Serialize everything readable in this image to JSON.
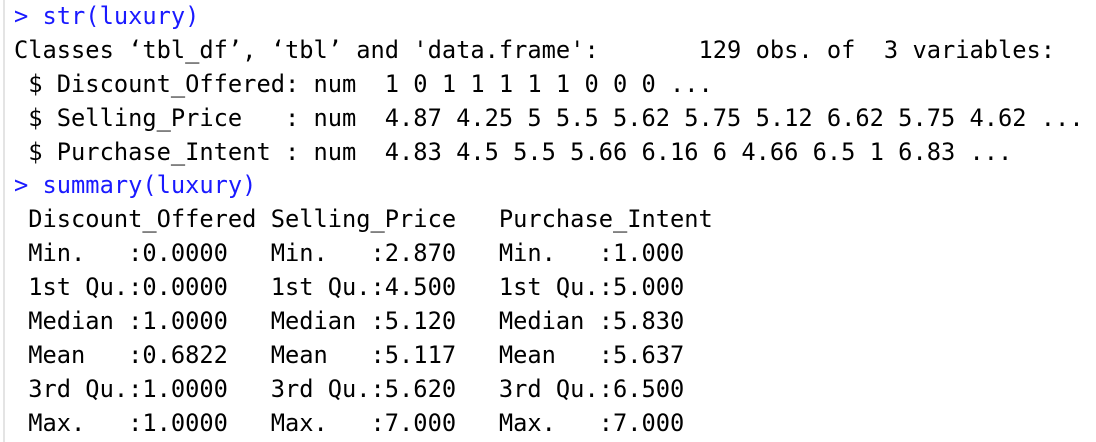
{
  "console": {
    "input_color": "#1a1aff",
    "lines": [
      "> str(luxury)",
      "Classes ‘tbl_df’, ‘tbl’ and 'data.frame':       129 obs. of  3 variables:",
      " $ Discount_Offered: num  1 0 1 1 1 1 1 0 0 0 ...",
      " $ Selling_Price   : num  4.87 4.25 5 5.5 5.62 5.75 5.12 6.62 5.75 4.62 ...",
      " $ Purchase_Intent : num  4.83 4.5 5.5 5.66 6.16 6 4.66 6.5 1 6.83 ...",
      "> summary(luxury)",
      " Discount_Offered Selling_Price   Purchase_Intent",
      " Min.   :0.0000   Min.   :2.870   Min.   :1.000  ",
      " 1st Qu.:0.0000   1st Qu.:4.500   1st Qu.:5.000  ",
      " Median :1.0000   Median :5.120   Median :5.830  ",
      " Mean   :0.6822   Mean   :5.117   Mean   :5.637  ",
      " 3rd Qu.:1.0000   3rd Qu.:5.620   3rd Qu.:6.500  ",
      " Max.   :1.0000   Max.   :7.000   Max.   :7.000  "
    ]
  }
}
